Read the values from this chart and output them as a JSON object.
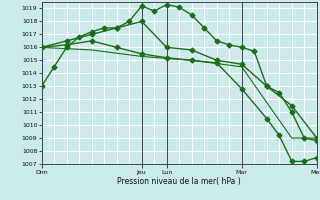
{
  "xlabel": "Pression niveau de la mer( hPa )",
  "bg_color": "#cceaea",
  "grid_color": "#ffffff",
  "line_color": "#1a6e1a",
  "ylim": [
    1007,
    1019.5
  ],
  "yticks": [
    1007,
    1008,
    1009,
    1010,
    1011,
    1012,
    1013,
    1014,
    1015,
    1016,
    1017,
    1018,
    1019
  ],
  "day_labels": [
    "Dim",
    "Jeu",
    "Lun",
    "Mar",
    "Mer"
  ],
  "day_positions": [
    0,
    48,
    60,
    96,
    132
  ],
  "xlim": [
    0,
    132
  ],
  "lines": [
    {
      "x": [
        0,
        6,
        12,
        18,
        24,
        30,
        36,
        42,
        48,
        54,
        60,
        66,
        72,
        78,
        84,
        90,
        96,
        102,
        108,
        114,
        120,
        126,
        132
      ],
      "y": [
        1013.0,
        1014.5,
        1016.0,
        1016.8,
        1017.2,
        1017.5,
        1017.5,
        1018.0,
        1019.2,
        1018.8,
        1019.3,
        1019.1,
        1018.5,
        1017.5,
        1016.5,
        1016.2,
        1016.0,
        1015.7,
        1013.0,
        1012.5,
        1011.0,
        1009.0,
        1008.8
      ],
      "marker": "D",
      "markersize": 2.5,
      "linewidth": 1.0
    },
    {
      "x": [
        0,
        12,
        24,
        36,
        48,
        60,
        72,
        84,
        96,
        108,
        120,
        132
      ],
      "y": [
        1016.0,
        1016.5,
        1017.0,
        1017.5,
        1018.0,
        1016.0,
        1015.8,
        1015.0,
        1014.7,
        1013.0,
        1011.5,
        1009.0
      ],
      "marker": "D",
      "markersize": 2.5,
      "linewidth": 1.0
    },
    {
      "x": [
        0,
        12,
        24,
        36,
        48,
        60,
        72,
        84,
        96,
        108,
        114,
        120,
        126,
        132
      ],
      "y": [
        1016.0,
        1016.2,
        1016.5,
        1016.0,
        1015.5,
        1015.2,
        1015.0,
        1014.8,
        1012.8,
        1010.5,
        1009.2,
        1007.2,
        1007.2,
        1007.5
      ],
      "marker": "D",
      "markersize": 2.5,
      "linewidth": 1.0
    },
    {
      "x": [
        0,
        24,
        48,
        72,
        96,
        120,
        132
      ],
      "y": [
        1016.0,
        1015.8,
        1015.3,
        1015.0,
        1014.5,
        1009.0,
        1009.0
      ],
      "marker": null,
      "markersize": 0,
      "linewidth": 0.8
    }
  ]
}
